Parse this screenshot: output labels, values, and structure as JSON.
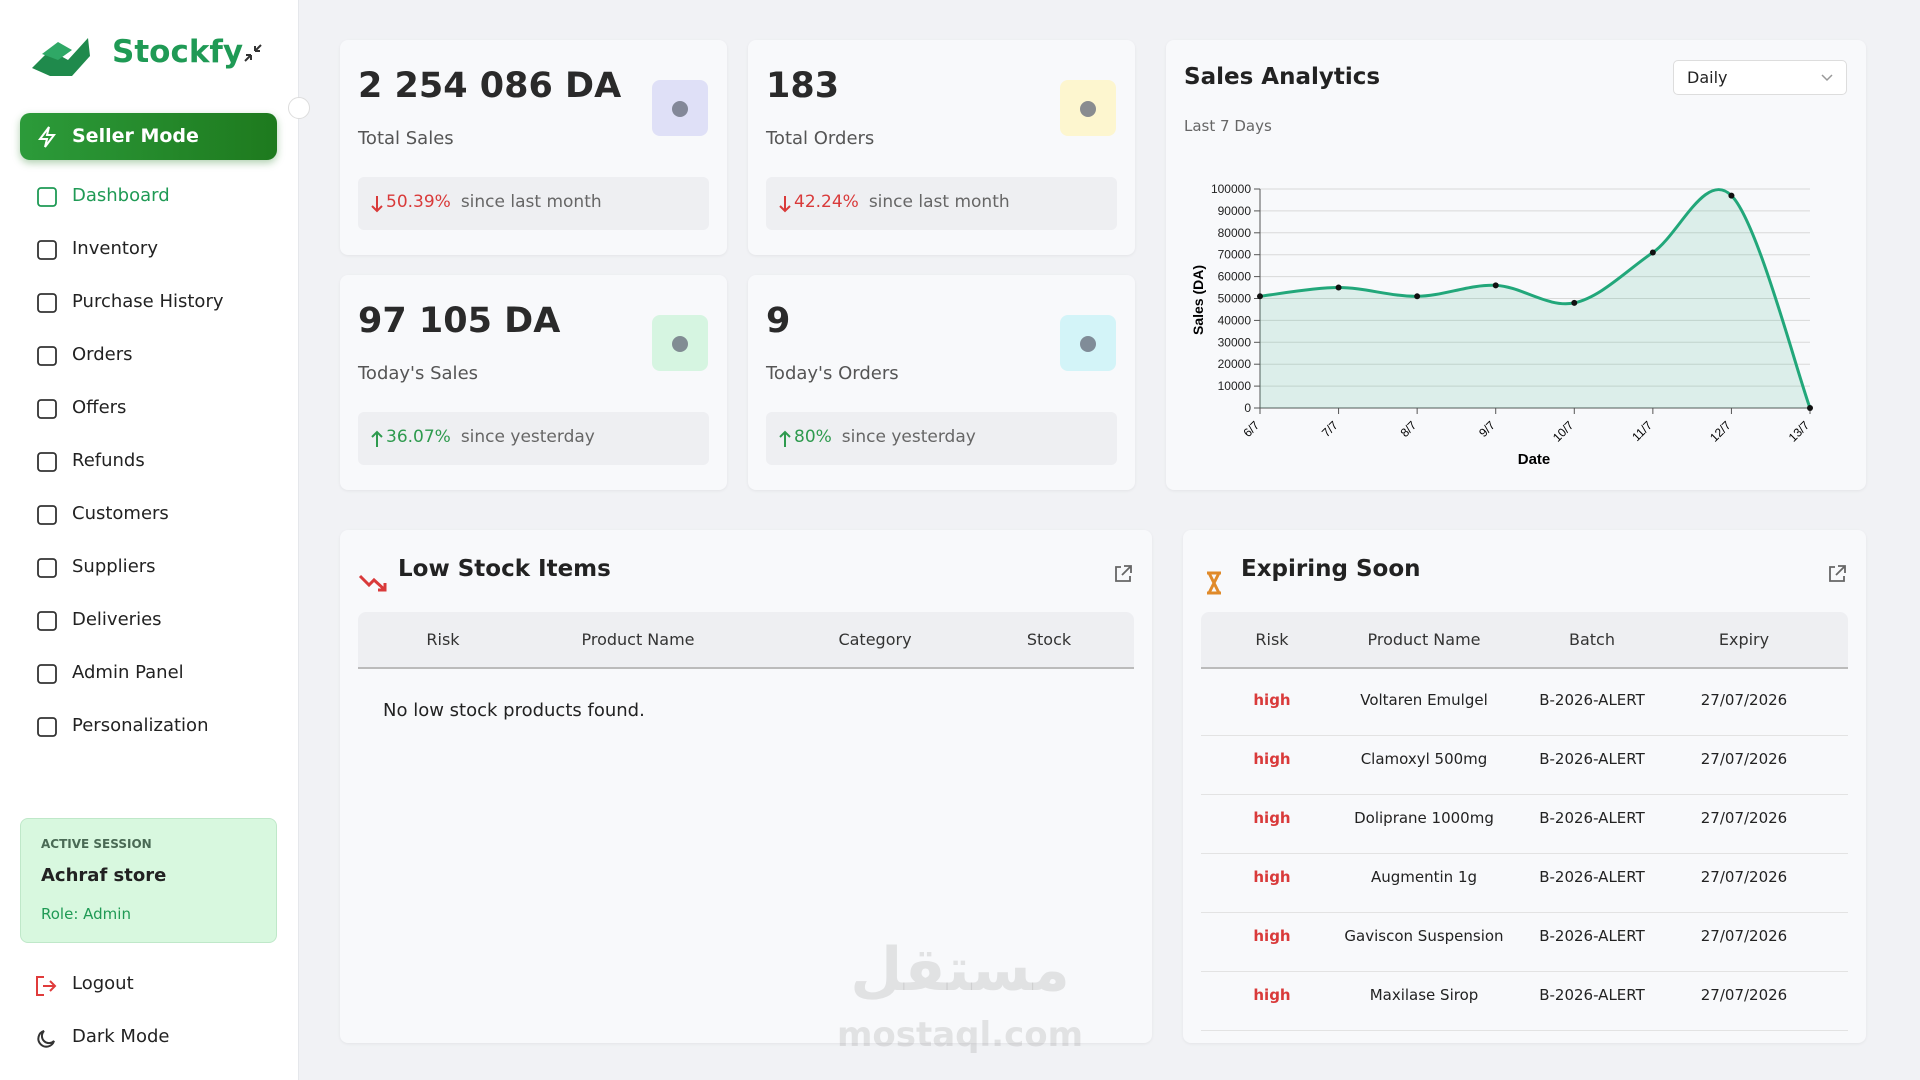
{
  "sidebar": {
    "brand": "Stockfy",
    "mode": "Seller Mode",
    "active": "Dashboard",
    "nav": [
      "Dashboard",
      "Inventory",
      "Purchase History",
      "Orders",
      "Offers",
      "Refunds",
      "Customers",
      "Suppliers",
      "Deliveries",
      "Admin Panel",
      "Personalization"
    ],
    "session": {
      "label": "ACTIVE SESSION",
      "store": "Achraf store",
      "role": "Role: Admin"
    },
    "logout": "Logout",
    "dark_mode": "Dark Mode"
  },
  "stats": [
    {
      "value": "2 254 086 DA",
      "label": "Total Sales",
      "change": "50.39%",
      "direction": "down",
      "note": "since last month",
      "color": "#dfe0f7"
    },
    {
      "value": "183",
      "label": "Total Orders",
      "change": "42.24%",
      "direction": "down",
      "note": "since last month",
      "color": "#fdf6cf"
    },
    {
      "value": "97 105 DA",
      "label": "Today's Sales",
      "change": "36.07%",
      "direction": "up",
      "note": "since yesterday",
      "color": "#d6f5e1"
    },
    {
      "value": "9",
      "label": "Today's Orders",
      "change": "80%",
      "direction": "up",
      "note": "since yesterday",
      "color": "#d3f4f8"
    }
  ],
  "sales_analytics": {
    "title": "Sales Analytics",
    "period": "Daily",
    "subtitle": "Last 7 Days",
    "chart": {
      "type": "line",
      "x_label": "Date",
      "y_label": "Sales (DA)",
      "categories": [
        "6/7",
        "7/7",
        "8/7",
        "9/7",
        "10/7",
        "11/7",
        "12/7",
        "13/7"
      ],
      "values": [
        51000,
        55000,
        51000,
        56000,
        48000,
        71000,
        97000,
        0
      ],
      "ylim": [
        0,
        100000
      ],
      "yticks": [
        0,
        10000,
        20000,
        30000,
        40000,
        50000,
        60000,
        70000,
        80000,
        90000,
        100000
      ],
      "color": "#22a77a",
      "grid": true
    }
  },
  "low_stock": {
    "title": "Low Stock Items",
    "columns": [
      "Risk",
      "Product Name",
      "Category",
      "Stock"
    ],
    "empty": "No low stock products found."
  },
  "expiring": {
    "title": "Expiring Soon",
    "columns": [
      "Risk",
      "Product Name",
      "Batch",
      "Expiry"
    ],
    "rows": [
      [
        "high",
        "Voltaren Emulgel",
        "B-2026-ALERT",
        "27/07/2026"
      ],
      [
        "high",
        "Clamoxyl 500mg",
        "B-2026-ALERT",
        "27/07/2026"
      ],
      [
        "high",
        "Doliprane 1000mg",
        "B-2026-ALERT",
        "27/07/2026"
      ],
      [
        "high",
        "Augmentin 1g",
        "B-2026-ALERT",
        "27/07/2026"
      ],
      [
        "high",
        "Gaviscon Suspension",
        "B-2026-ALERT",
        "27/07/2026"
      ],
      [
        "high",
        "Maxilase Sirop",
        "B-2026-ALERT",
        "27/07/2026"
      ]
    ]
  },
  "watermark": {
    "arabic": "مستقل",
    "latin": "mostaql.com"
  }
}
